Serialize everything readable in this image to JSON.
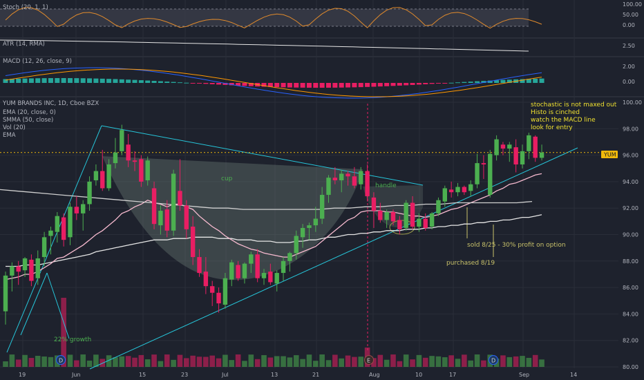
{
  "instrument": {
    "title": "YUM BRANDS INC, 1D, Cboe BZX",
    "price_badge": "YUM",
    "last_price": 96.2
  },
  "indicator_labels": {
    "stoch": "Stoch (20, 1, 1)",
    "atr": "ATR (14, RMA)",
    "macd": "MACD (12, 26, close, 9)",
    "ema20": "EMA (20, close, 0)",
    "smma50": "SMMA (50, close)",
    "vol": "Vol (20)",
    "ema": "EMA"
  },
  "notes": {
    "line1": "stochastic is not maxed out",
    "line2": "Histo is cinched",
    "line3": "watch the MACD line",
    "line4": "look for entry"
  },
  "annotations": {
    "cup": "cup",
    "handle": "handle",
    "growth": "22% growth",
    "sold": "sold 8/25 - 30% profit on option",
    "purchased": "purchased 8/19"
  },
  "event_markers": [
    "D",
    "E",
    "D"
  ],
  "colors": {
    "background": "#1e222d",
    "up": "#4caf50",
    "down": "#e91e63",
    "trendline": "#26c6da",
    "price_line": "#f0b90b",
    "notes": "#f0e130",
    "stoch_line": "#e08a2c",
    "ema20": "#f8bbd0",
    "smma50": "#e6e6e6"
  },
  "chart_data": {
    "type": "candlestick",
    "x_tick_labels": [
      "19",
      "Jun",
      "15",
      "23",
      "Jul",
      "13",
      "21",
      "Aug",
      "10",
      "17",
      "Sep",
      "14"
    ],
    "y_axis_main": {
      "ticks": [
        "80.00",
        "82.00",
        "84.00",
        "86.00",
        "88.00",
        "90.00",
        "92.00",
        "94.00",
        "96.00",
        "98.00",
        "100.00"
      ],
      "range": [
        79.5,
        100.5
      ]
    },
    "y_axis_stoch": {
      "ticks": [
        "100.00",
        "50.00",
        "0.00"
      ]
    },
    "y_axis_atr": {
      "ticks": [
        "2.50"
      ]
    },
    "y_axis_macd": {
      "ticks": [
        "2.00",
        "0.00"
      ]
    },
    "candles": [
      [
        84.2,
        87.2,
        83.2,
        86.9
      ],
      [
        86.9,
        87.9,
        85.7,
        87.6
      ],
      [
        87.6,
        88.0,
        86.2,
        87.2
      ],
      [
        87.3,
        88.3,
        86.8,
        88.2
      ],
      [
        88.1,
        88.5,
        86.1,
        86.5
      ],
      [
        86.7,
        88.8,
        86.2,
        88.2
      ],
      [
        88.3,
        90.2,
        87.6,
        89.8
      ],
      [
        89.9,
        90.6,
        88.5,
        90.3
      ],
      [
        90.2,
        91.7,
        89.4,
        91.4
      ],
      [
        91.3,
        91.6,
        89.1,
        89.6
      ],
      [
        89.8,
        92.4,
        89.2,
        92.1
      ],
      [
        92.1,
        92.9,
        91.1,
        91.6
      ],
      [
        91.6,
        92.6,
        90.3,
        92.3
      ],
      [
        92.3,
        94.4,
        91.8,
        94.0
      ],
      [
        94.1,
        95.3,
        93.7,
        94.8
      ],
      [
        94.8,
        96.4,
        93.3,
        93.5
      ],
      [
        93.5,
        95.7,
        93.3,
        95.3
      ],
      [
        95.4,
        97.3,
        95.0,
        96.2
      ],
      [
        96.3,
        98.3,
        96.0,
        97.9
      ],
      [
        96.8,
        97.6,
        95.1,
        95.6
      ],
      [
        95.6,
        96.3,
        94.8,
        95.5
      ],
      [
        95.7,
        96.0,
        93.6,
        94.0
      ],
      [
        94.1,
        95.9,
        93.7,
        95.6
      ],
      [
        93.5,
        94.0,
        90.4,
        90.8
      ],
      [
        90.7,
        92.2,
        90.0,
        91.8
      ],
      [
        91.9,
        92.6,
        89.8,
        90.3
      ],
      [
        90.3,
        94.9,
        89.9,
        94.6
      ],
      [
        93.3,
        95.7,
        91.8,
        92.2
      ],
      [
        92.2,
        92.6,
        89.7,
        90.4
      ],
      [
        90.6,
        91.4,
        87.7,
        88.3
      ],
      [
        88.3,
        88.9,
        86.8,
        87.1
      ],
      [
        87.2,
        88.3,
        85.5,
        86.1
      ],
      [
        86.1,
        86.5,
        84.6,
        85.6
      ],
      [
        85.6,
        86.0,
        84.1,
        84.8
      ],
      [
        84.7,
        87.1,
        84.4,
        86.7
      ],
      [
        86.6,
        88.1,
        86.1,
        87.9
      ],
      [
        87.7,
        88.0,
        86.5,
        86.7
      ],
      [
        86.7,
        87.9,
        86.3,
        87.8
      ],
      [
        87.8,
        88.7,
        87.1,
        88.5
      ],
      [
        88.5,
        88.9,
        86.4,
        86.7
      ],
      [
        86.7,
        87.4,
        86.2,
        87.1
      ],
      [
        87.2,
        87.8,
        86.2,
        86.4
      ],
      [
        86.3,
        87.3,
        85.7,
        87.1
      ],
      [
        87.1,
        88.3,
        86.5,
        88.0
      ],
      [
        88.0,
        88.7,
        87.2,
        88.6
      ],
      [
        88.6,
        90.3,
        88.1,
        89.9
      ],
      [
        89.8,
        90.8,
        89.0,
        90.5
      ],
      [
        90.5,
        90.9,
        89.6,
        90.7
      ],
      [
        90.7,
        92.1,
        90.2,
        91.2
      ],
      [
        91.2,
        93.6,
        90.8,
        93.0
      ],
      [
        93.0,
        94.5,
        92.4,
        94.3
      ],
      [
        94.3,
        95.1,
        93.8,
        94.1
      ],
      [
        94.1,
        94.9,
        93.2,
        94.6
      ],
      [
        94.6,
        94.8,
        93.7,
        94.4
      ],
      [
        94.4,
        95.1,
        93.5,
        93.7
      ],
      [
        93.8,
        95.1,
        93.4,
        94.8
      ],
      [
        94.8,
        95.3,
        92.5,
        92.9
      ],
      [
        92.8,
        93.2,
        90.5,
        91.8
      ],
      [
        91.8,
        92.4,
        90.9,
        91.1
      ],
      [
        91.1,
        91.9,
        90.5,
        91.7
      ],
      [
        91.7,
        91.9,
        90.7,
        91.0
      ],
      [
        91.1,
        91.4,
        90.0,
        90.4
      ],
      [
        90.5,
        92.6,
        90.3,
        92.4
      ],
      [
        92.4,
        92.9,
        90.4,
        90.6
      ],
      [
        90.6,
        91.6,
        90.2,
        91.2
      ],
      [
        91.2,
        91.6,
        90.3,
        90.5
      ],
      [
        90.6,
        91.7,
        90.4,
        91.6
      ],
      [
        91.6,
        92.8,
        91.4,
        92.6
      ],
      [
        92.5,
        93.7,
        92.1,
        93.5
      ],
      [
        93.4,
        94.0,
        92.8,
        93.2
      ],
      [
        93.2,
        93.9,
        92.9,
        93.6
      ],
      [
        93.6,
        93.7,
        93.0,
        93.2
      ],
      [
        93.3,
        94.1,
        92.9,
        93.8
      ],
      [
        93.8,
        96.1,
        93.5,
        95.4
      ],
      [
        95.4,
        96.0,
        94.2,
        95.3
      ],
      [
        93.0,
        96.4,
        92.8,
        96.1
      ],
      [
        96.0,
        97.5,
        95.6,
        97.2
      ],
      [
        96.8,
        97.0,
        96.0,
        96.5
      ],
      [
        96.5,
        97.0,
        95.5,
        96.8
      ],
      [
        96.6,
        97.2,
        94.7,
        95.3
      ],
      [
        95.3,
        96.8,
        95.0,
        96.3
      ],
      [
        96.3,
        97.7,
        95.7,
        97.5
      ],
      [
        97.4,
        97.5,
        95.5,
        95.8
      ],
      [
        95.8,
        96.8,
        95.6,
        96.2
      ]
    ],
    "ema20": [
      86.6,
      86.7,
      86.8,
      87.0,
      87.0,
      87.2,
      87.5,
      87.8,
      88.2,
      88.3,
      88.6,
      88.9,
      89.2,
      89.6,
      90.0,
      90.3,
      90.7,
      91.1,
      91.6,
      91.8,
      92.1,
      92.3,
      92.6,
      92.4,
      92.3,
      92.1,
      92.3,
      92.3,
      92.1,
      91.9,
      91.4,
      91.0,
      90.6,
      90.3,
      89.9,
      89.6,
      89.3,
      89.1,
      88.9,
      88.8,
      88.6,
      88.5,
      88.4,
      88.3,
      88.3,
      88.5,
      88.7,
      88.9,
      89.1,
      89.5,
      89.9,
      90.3,
      90.7,
      91.1,
      91.3,
      91.7,
      91.8,
      91.8,
      91.8,
      91.7,
      91.7,
      91.6,
      91.5,
      91.4,
      91.4,
      91.3,
      91.4,
      91.5,
      91.7,
      91.9,
      92.0,
      92.2,
      92.4,
      92.6,
      92.8,
      93.0,
      93.3,
      93.5,
      93.8,
      93.9,
      94.1,
      94.3,
      94.5,
      94.6
    ],
    "smma50": [
      87.6,
      87.6,
      87.6,
      87.7,
      87.7,
      87.7,
      87.8,
      87.9,
      88.0,
      88.1,
      88.2,
      88.3,
      88.4,
      88.5,
      88.7,
      88.8,
      88.9,
      89.0,
      89.1,
      89.2,
      89.3,
      89.4,
      89.5,
      89.6,
      89.6,
      89.6,
      89.7,
      89.7,
      89.7,
      89.8,
      89.8,
      89.8,
      89.8,
      89.7,
      89.7,
      89.7,
      89.6,
      89.6,
      89.6,
      89.5,
      89.5,
      89.5,
      89.4,
      89.4,
      89.4,
      89.5,
      89.5,
      89.6,
      89.6,
      89.7,
      89.8,
      89.8,
      89.9,
      90.0,
      90.0,
      90.1,
      90.1,
      90.2,
      90.2,
      90.3,
      90.3,
      90.3,
      90.4,
      90.4,
      90.4,
      90.5,
      90.5,
      90.6,
      90.6,
      90.7,
      90.7,
      90.8,
      90.8,
      90.9,
      90.9,
      91.0,
      91.0,
      91.1,
      91.1,
      91.2,
      91.3,
      91.3,
      91.4,
      91.5
    ],
    "ema": [
      93.4,
      93.3,
      93.2,
      93.1,
      93.0,
      92.9,
      92.8,
      92.7,
      92.6,
      92.5,
      92.4,
      92.3,
      92.2,
      92.1,
      92.0,
      92.0,
      91.9,
      91.9,
      91.9,
      91.9,
      91.9,
      91.9,
      92.0,
      92.0,
      92.1,
      92.1,
      92.2,
      92.2,
      92.3,
      92.3,
      92.4,
      92.4,
      92.4,
      92.4,
      92.4,
      92.5
    ]
  }
}
